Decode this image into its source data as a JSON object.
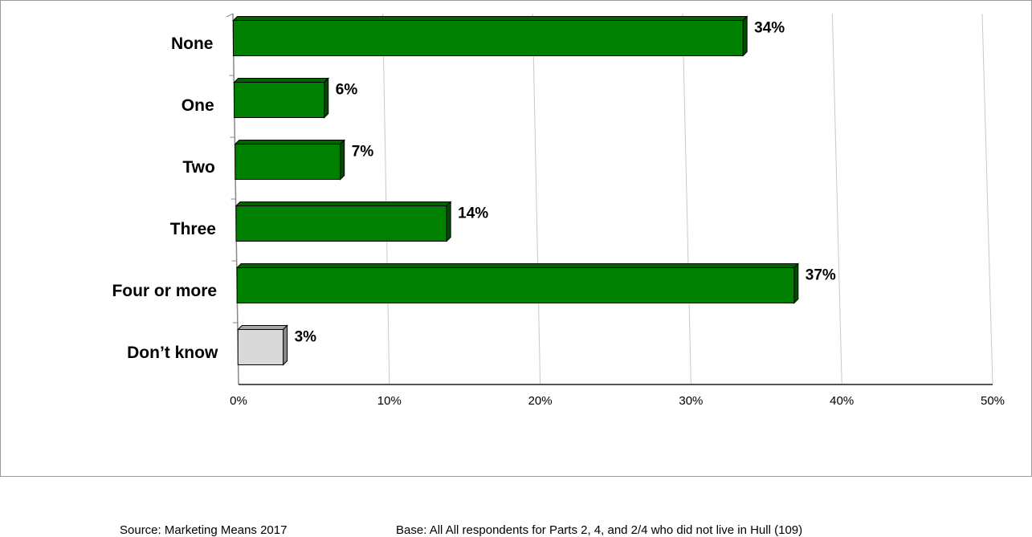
{
  "chart_data": {
    "type": "bar",
    "orientation": "horizontal",
    "style": "3d",
    "categories": [
      "None",
      "One",
      "Two",
      "Three",
      "Four or more",
      "Don’t know"
    ],
    "values": [
      34,
      6,
      7,
      14,
      37,
      3
    ],
    "value_labels": [
      "34%",
      "6%",
      "7%",
      "14%",
      "37%",
      "3%"
    ],
    "bar_colors": [
      "#008000",
      "#008000",
      "#008000",
      "#008000",
      "#008000",
      "#d9d9d9"
    ],
    "x_ticks": [
      "0%",
      "10%",
      "20%",
      "30%",
      "40%",
      "50%"
    ],
    "xlim": [
      0,
      50
    ],
    "grid": true,
    "legend": "none"
  },
  "footer": {
    "source": "Source: Marketing Means 2017",
    "base": "Base:  All All respondents for Parts 2, 4, and 2/4 who did not live in Hull   (109)"
  }
}
